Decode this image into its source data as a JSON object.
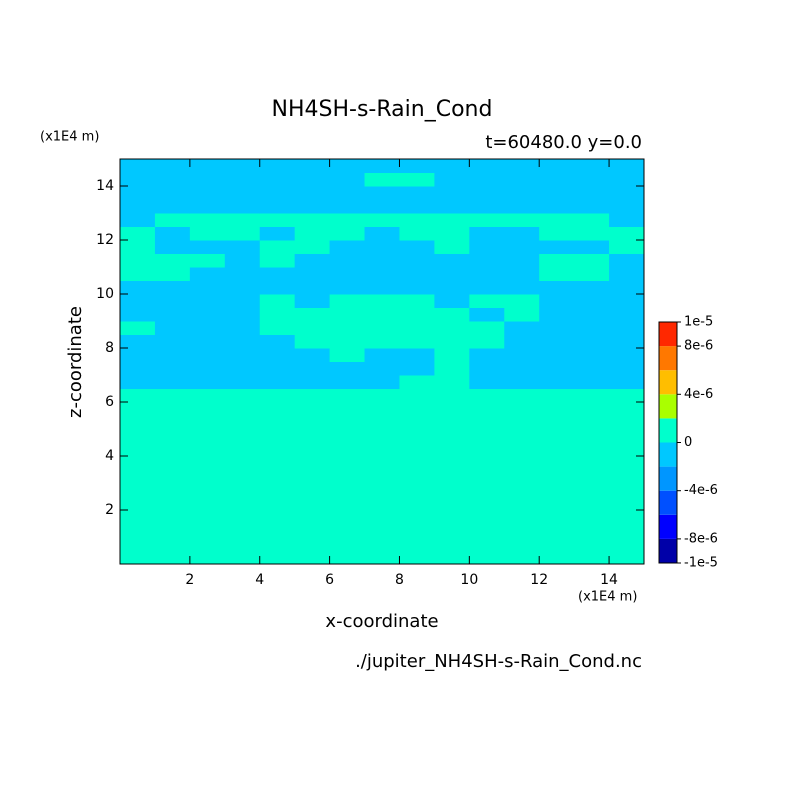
{
  "chart_data": {
    "type": "contour",
    "title": "NH4SH-s-Rain_Cond",
    "subtitle": "t=60480.0 y=0.0",
    "x_unit": "(x1E4 m)",
    "y_unit": "(x1E4 m)",
    "xlabel": "x-coordinate",
    "ylabel": "z-coordinate",
    "footer": "./jupiter_NH4SH-s-Rain_Cond.nc",
    "xlim": [
      0,
      15
    ],
    "ylim": [
      0,
      15
    ],
    "xticks": [
      2,
      4,
      6,
      8,
      10,
      12,
      14
    ],
    "yticks": [
      2,
      4,
      6,
      8,
      10,
      12,
      14
    ],
    "x": [
      0.5,
      1.5,
      2.5,
      3.5,
      4.5,
      5.5,
      6.5,
      7.5,
      8.5,
      9.5,
      10.5,
      11.5,
      12.5,
      13.5,
      14.5
    ],
    "z": [
      0.25,
      0.75,
      1.25,
      1.75,
      2.25,
      2.75,
      3.25,
      3.75,
      4.25,
      4.75,
      5.25,
      5.75,
      6.25,
      6.75,
      7.25,
      7.75,
      8.25,
      8.75,
      9.25,
      9.75,
      10.25,
      10.75,
      11.25,
      11.75,
      12.25,
      12.75,
      13.25,
      13.75,
      14.25,
      14.75
    ],
    "values": [
      [
        1e-06,
        1e-06,
        1e-06,
        1e-06,
        1e-06,
        1e-06,
        1e-06,
        1e-06,
        1e-06,
        1e-06,
        1e-06,
        1e-06,
        1e-06,
        1e-06,
        1e-06
      ],
      [
        1e-06,
        1e-06,
        1e-06,
        1e-06,
        1e-06,
        1e-06,
        1e-06,
        1e-06,
        1e-06,
        1e-06,
        1e-06,
        1e-06,
        1e-06,
        1e-06,
        1e-06
      ],
      [
        1e-06,
        1e-06,
        1e-06,
        1e-06,
        1e-06,
        1e-06,
        1e-06,
        1e-06,
        1e-06,
        1e-06,
        1e-06,
        1e-06,
        1e-06,
        1e-06,
        1e-06
      ],
      [
        1e-06,
        1e-06,
        1e-06,
        1e-06,
        1e-06,
        1e-06,
        1e-06,
        1e-06,
        1e-06,
        1e-06,
        1e-06,
        1e-06,
        1e-06,
        1e-06,
        1e-06
      ],
      [
        1e-06,
        1e-06,
        1e-06,
        1e-06,
        1e-06,
        1e-06,
        1e-06,
        1e-06,
        1e-06,
        1e-06,
        1e-06,
        1e-06,
        1e-06,
        1e-06,
        1e-06
      ],
      [
        1e-06,
        1e-06,
        1e-06,
        1e-06,
        1e-06,
        1e-06,
        1e-06,
        1e-06,
        1e-06,
        1e-06,
        1e-06,
        1e-06,
        1e-06,
        1e-06,
        1e-06
      ],
      [
        1e-06,
        1e-06,
        1e-06,
        1e-06,
        1e-06,
        1e-06,
        1e-06,
        1e-06,
        1e-06,
        1e-06,
        1e-06,
        1e-06,
        1e-06,
        1e-06,
        1e-06
      ],
      [
        1e-06,
        1e-06,
        1e-06,
        1e-06,
        1e-06,
        1e-06,
        1e-06,
        1e-06,
        1e-06,
        1e-06,
        1e-06,
        1e-06,
        1e-06,
        1e-06,
        1e-06
      ],
      [
        1e-06,
        1e-06,
        1e-06,
        1e-06,
        1e-06,
        1e-06,
        1e-06,
        1e-06,
        1e-06,
        1e-06,
        1e-06,
        1e-06,
        1e-06,
        1e-06,
        1e-06
      ],
      [
        1e-06,
        1e-06,
        1e-06,
        1e-06,
        1e-06,
        1e-06,
        1e-06,
        1e-06,
        1e-06,
        1e-06,
        1e-06,
        1e-06,
        1e-06,
        1e-06,
        1e-06
      ],
      [
        1e-06,
        1e-06,
        1e-06,
        1e-06,
        1e-06,
        1e-06,
        1e-06,
        1e-06,
        1e-06,
        1e-06,
        1e-06,
        1e-06,
        1e-06,
        1e-06,
        1e-06
      ],
      [
        1e-06,
        1e-06,
        1e-06,
        1e-06,
        1e-06,
        1e-06,
        1e-06,
        1e-06,
        1e-06,
        1e-06,
        1e-06,
        1e-06,
        1e-06,
        1e-06,
        1e-06
      ],
      [
        1e-06,
        1e-06,
        1e-06,
        1e-06,
        1e-06,
        1e-06,
        1e-06,
        1e-06,
        1e-06,
        1e-06,
        1e-06,
        1e-06,
        1e-06,
        1e-06,
        1e-06
      ],
      [
        -1e-06,
        -1e-06,
        -1e-06,
        -1e-06,
        -1e-06,
        -1e-06,
        -1e-06,
        -1e-06,
        1e-06,
        1e-06,
        -1e-06,
        -1e-06,
        -1e-06,
        -1e-06,
        -1e-06
      ],
      [
        -1e-06,
        -1e-06,
        -1e-06,
        -1e-06,
        -1e-06,
        -1e-06,
        -1e-06,
        -1e-06,
        -1e-06,
        1e-06,
        -1e-06,
        -1e-06,
        -1e-06,
        -1e-06,
        -1e-06
      ],
      [
        -1e-06,
        -1e-06,
        -1e-06,
        -1e-06,
        -1e-06,
        -1e-06,
        1e-06,
        -1e-06,
        -1e-06,
        1e-06,
        -1e-06,
        -1e-06,
        -1e-06,
        -1e-06,
        -1e-06
      ],
      [
        -1e-06,
        -1e-06,
        -1e-06,
        -1e-06,
        -1e-06,
        1e-06,
        1e-06,
        1e-06,
        1e-06,
        1e-06,
        1e-06,
        -1e-06,
        -1e-06,
        -1e-06,
        -1e-06
      ],
      [
        1e-06,
        -1e-06,
        -1e-06,
        -1e-06,
        1e-06,
        1e-06,
        1e-06,
        1e-06,
        1e-06,
        1e-06,
        1e-06,
        -1e-06,
        -1e-06,
        -1e-06,
        -1e-06
      ],
      [
        -1e-06,
        -1e-06,
        -1e-06,
        -1e-06,
        1e-06,
        1e-06,
        1e-06,
        1e-06,
        1e-06,
        1e-06,
        -1e-06,
        1e-06,
        -1e-06,
        -1e-06,
        -1e-06
      ],
      [
        -1e-06,
        -1e-06,
        -1e-06,
        -1e-06,
        1e-06,
        -1e-06,
        1e-06,
        1e-06,
        1e-06,
        -1e-06,
        1e-06,
        1e-06,
        -1e-06,
        -1e-06,
        -1e-06
      ],
      [
        -1e-06,
        -1e-06,
        -1e-06,
        -1e-06,
        -1e-06,
        -1e-06,
        -1e-06,
        -1e-06,
        -1e-06,
        -1e-06,
        -1e-06,
        -1e-06,
        -1e-06,
        -1e-06,
        -1e-06
      ],
      [
        1e-06,
        1e-06,
        -1e-06,
        -1e-06,
        -1e-06,
        -1e-06,
        -1e-06,
        -1e-06,
        -1e-06,
        -1e-06,
        -1e-06,
        -1e-06,
        1e-06,
        1e-06,
        -1e-06
      ],
      [
        1e-06,
        1e-06,
        1e-06,
        -1e-06,
        1e-06,
        -1e-06,
        -1e-06,
        -1e-06,
        -1e-06,
        -1e-06,
        -1e-06,
        -1e-06,
        1e-06,
        1e-06,
        -1e-06
      ],
      [
        1e-06,
        -1e-06,
        -1e-06,
        -1e-06,
        1e-06,
        1e-06,
        -1e-06,
        -1e-06,
        -1e-06,
        1e-06,
        -1e-06,
        -1e-06,
        -1e-06,
        -1e-06,
        1e-06
      ],
      [
        1e-06,
        -1e-06,
        1e-06,
        1e-06,
        -1e-06,
        1e-06,
        1e-06,
        -1e-06,
        1e-06,
        1e-06,
        -1e-06,
        -1e-06,
        1e-06,
        1e-06,
        1e-06
      ],
      [
        -1e-06,
        1e-06,
        1e-06,
        1e-06,
        1e-06,
        1e-06,
        1e-06,
        1e-06,
        1e-06,
        1e-06,
        1e-06,
        1e-06,
        1e-06,
        1e-06,
        -1e-06
      ],
      [
        -1e-06,
        -1e-06,
        -1e-06,
        -1e-06,
        -1e-06,
        -1e-06,
        -1e-06,
        -1e-06,
        -1e-06,
        -1e-06,
        -1e-06,
        -1e-06,
        -1e-06,
        -1e-06,
        -1e-06
      ],
      [
        -1e-06,
        -1e-06,
        -1e-06,
        -1e-06,
        -1e-06,
        -1e-06,
        -1e-06,
        -1e-06,
        -1e-06,
        -1e-06,
        -1e-06,
        -1e-06,
        -1e-06,
        -1e-06,
        -1e-06
      ],
      [
        -1e-06,
        -1e-06,
        -1e-06,
        -1e-06,
        -1e-06,
        -1e-06,
        -1e-06,
        1e-06,
        1e-06,
        -1e-06,
        -1e-06,
        -1e-06,
        -1e-06,
        -1e-06,
        -1e-06
      ],
      [
        -1e-06,
        -1e-06,
        -1e-06,
        -1e-06,
        -1e-06,
        -1e-06,
        -1e-06,
        -1e-06,
        -1e-06,
        -1e-06,
        -1e-06,
        -1e-06,
        -1e-06,
        -1e-06,
        -1e-06
      ]
    ],
    "levels": [
      -1e-05,
      -8e-06,
      -6e-06,
      -4e-06,
      -2e-06,
      0,
      2e-06,
      4e-06,
      6e-06,
      8e-06,
      1e-05
    ],
    "colors": [
      "#0000a8",
      "#0000ff",
      "#0050ff",
      "#0096ff",
      "#00c8ff",
      "#00ffcc",
      "#aaff00",
      "#ffbe00",
      "#ff7800",
      "#ff2800",
      "#ff4646"
    ],
    "colorbar_ticks": [
      {
        "value": 1e-05,
        "label": "1e-5"
      },
      {
        "value": 8e-06,
        "label": "8e-6"
      },
      {
        "value": 4e-06,
        "label": "4e-6"
      },
      0,
      {
        "value": -4e-06,
        "label": "-4e-6"
      },
      {
        "value": -8e-06,
        "label": "-8e-6"
      },
      {
        "value": -1e-05,
        "label": "-1e-5"
      }
    ]
  }
}
